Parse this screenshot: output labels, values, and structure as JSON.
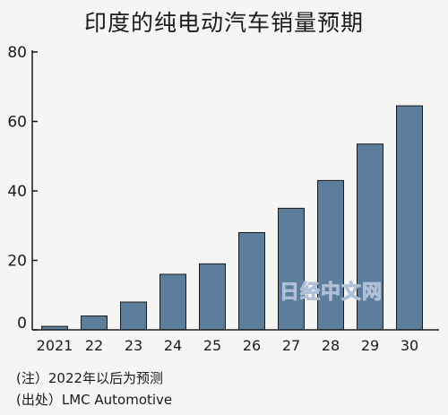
{
  "title": "印度的纯电动汽车销量预期",
  "watermark": "日经中文网",
  "notes": {
    "forecast": "(注）2022年以后为预测",
    "source": "(出处）LMC Automotive"
  },
  "colors": {
    "bar": "#5c7d9c",
    "bar_stroke": "#1a1a1a",
    "axis": "#1a1a1a"
  },
  "chart_data": {
    "type": "bar",
    "title": "印度的纯电动汽车销量预期",
    "categories": [
      "2021",
      "22",
      "23",
      "24",
      "25",
      "26",
      "27",
      "28",
      "29",
      "30"
    ],
    "values": [
      1,
      4,
      8,
      16,
      19,
      28,
      35,
      43,
      53.5,
      64.5
    ],
    "ylim": [
      0,
      80
    ],
    "yticks": [
      0,
      20,
      40,
      60,
      80
    ],
    "grid": false,
    "legend": "none",
    "xlabel": "",
    "ylabel": ""
  }
}
